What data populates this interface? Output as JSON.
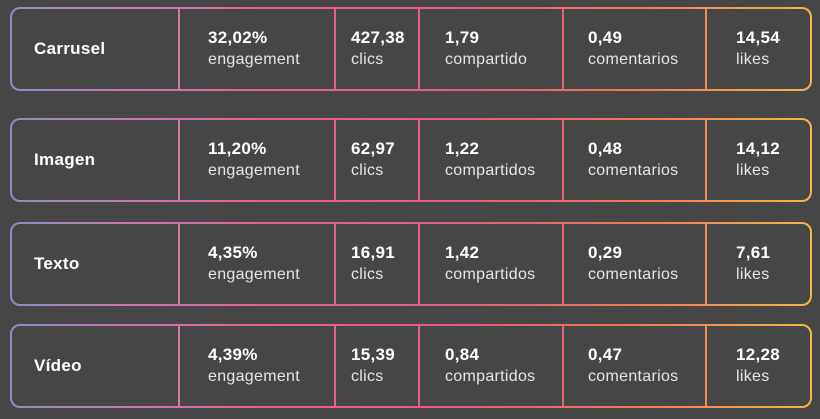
{
  "theme": {
    "background": "#464646",
    "text": "#ffffff",
    "gradient": [
      "#8c8fc8",
      "#c77ab6",
      "#ea5d93",
      "#e85c78",
      "#f07b59",
      "#f7b54c"
    ]
  },
  "rows": [
    {
      "label": "Carrusel",
      "engagement": {
        "value": "32,02%",
        "unit": "engagement"
      },
      "clics": {
        "value": "427,38",
        "unit": "clics"
      },
      "compartidos": {
        "value": "1,79",
        "unit": "compartido"
      },
      "comentarios": {
        "value": "0,49",
        "unit": "comentarios"
      },
      "likes": {
        "value": "14,54",
        "unit": "likes"
      }
    },
    {
      "label": "Imagen",
      "engagement": {
        "value": "11,20%",
        "unit": "engagement"
      },
      "clics": {
        "value": "62,97",
        "unit": "clics"
      },
      "compartidos": {
        "value": "1,22",
        "unit": "compartidos"
      },
      "comentarios": {
        "value": "0,48",
        "unit": "comentarios"
      },
      "likes": {
        "value": "14,12",
        "unit": "likes"
      }
    },
    {
      "label": "Texto",
      "engagement": {
        "value": "4,35%",
        "unit": "engagement"
      },
      "clics": {
        "value": "16,91",
        "unit": "clics"
      },
      "compartidos": {
        "value": "1,42",
        "unit": "compartidos"
      },
      "comentarios": {
        "value": "0,29",
        "unit": "comentarios"
      },
      "likes": {
        "value": "7,61",
        "unit": "likes"
      }
    },
    {
      "label": "Vídeo",
      "engagement": {
        "value": "4,39%",
        "unit": "engagement"
      },
      "clics": {
        "value": "15,39",
        "unit": "clics"
      },
      "compartidos": {
        "value": "0,84",
        "unit": "compartidos"
      },
      "comentarios": {
        "value": "0,47",
        "unit": "comentarios"
      },
      "likes": {
        "value": "12,28",
        "unit": "likes"
      }
    }
  ]
}
